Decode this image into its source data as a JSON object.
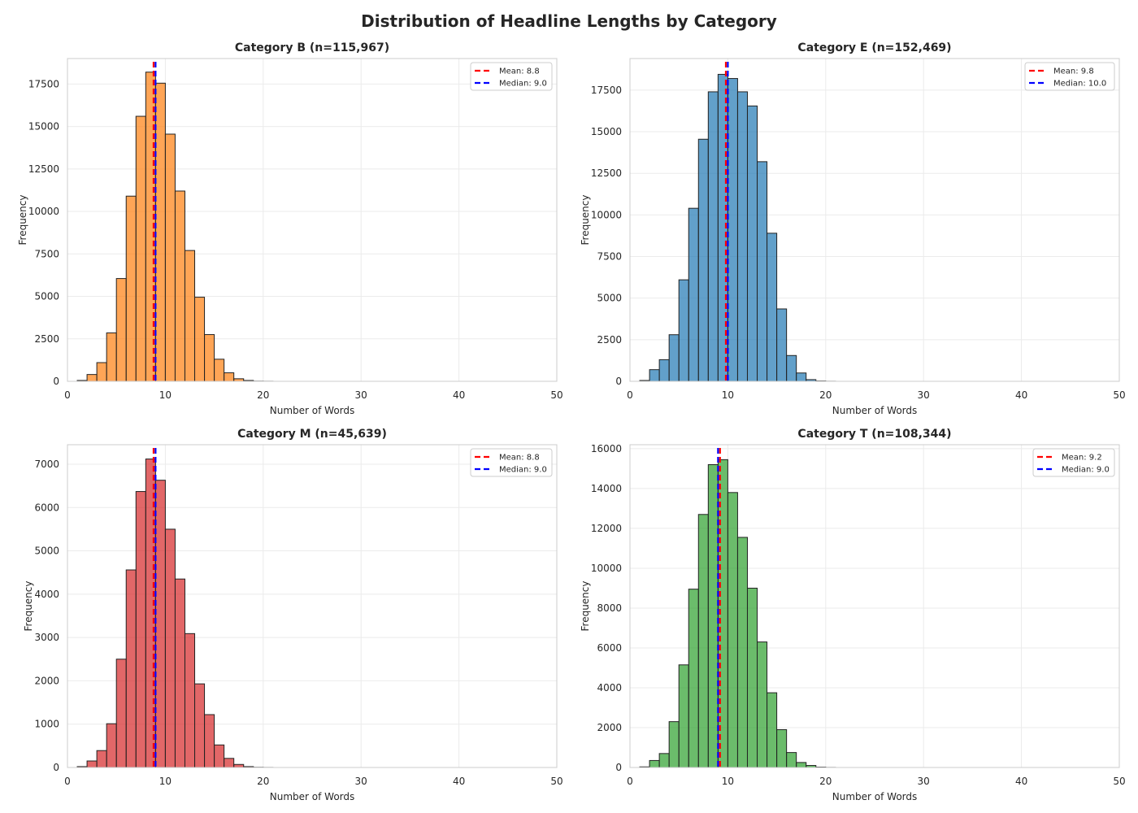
{
  "figure": {
    "title": "Distribution of Headline Lengths by Category"
  },
  "chart_data": [
    {
      "type": "bar",
      "title": "Category B (n=115,967)",
      "xlabel": "Number of Words",
      "ylabel": "Frequency",
      "color": "#ff7f0e",
      "xlim": [
        0,
        50
      ],
      "ylim": [
        0,
        19000
      ],
      "xticks": [
        0,
        10,
        20,
        30,
        40,
        50
      ],
      "yticks": [
        0,
        2500,
        5000,
        7500,
        10000,
        12500,
        15000,
        17500
      ],
      "bin_width": 1,
      "bin_starts": [
        1,
        2,
        3,
        4,
        5,
        6,
        7,
        8,
        9,
        10,
        11,
        12,
        13,
        14,
        15,
        16,
        17,
        18,
        19,
        20
      ],
      "values": [
        50,
        400,
        1100,
        2850,
        6050,
        10900,
        15600,
        18200,
        17550,
        14550,
        11200,
        7700,
        4950,
        2750,
        1300,
        500,
        150,
        50,
        10,
        5
      ],
      "legend": [
        {
          "label": "Mean: 8.8",
          "color": "#ff0000",
          "x": 8.8
        },
        {
          "label": "Median: 9.0",
          "color": "#0000ff",
          "x": 9.0
        }
      ],
      "legend_position": "upper right",
      "grid": true
    },
    {
      "type": "bar",
      "title": "Category E (n=152,469)",
      "xlabel": "Number of Words",
      "ylabel": "Frequency",
      "color": "#1f77b4",
      "xlim": [
        0,
        50
      ],
      "ylim": [
        0,
        19400
      ],
      "xticks": [
        0,
        10,
        20,
        30,
        40,
        50
      ],
      "yticks": [
        0,
        2500,
        5000,
        7500,
        10000,
        12500,
        15000,
        17500
      ],
      "bin_width": 1,
      "bin_starts": [
        1,
        2,
        3,
        4,
        5,
        6,
        7,
        8,
        9,
        10,
        11,
        12,
        13,
        14,
        15,
        16,
        17,
        18,
        19,
        20
      ],
      "values": [
        50,
        700,
        1300,
        2800,
        6100,
        10400,
        14550,
        17400,
        18450,
        18200,
        17400,
        16550,
        13200,
        8900,
        4350,
        1550,
        500,
        100,
        20,
        5
      ],
      "legend": [
        {
          "label": "Mean: 9.8",
          "color": "#ff0000",
          "x": 9.8
        },
        {
          "label": "Median: 10.0",
          "color": "#0000ff",
          "x": 10.0
        }
      ],
      "legend_position": "upper right",
      "grid": true
    },
    {
      "type": "bar",
      "title": "Category M (n=45,639)",
      "xlabel": "Number of Words",
      "ylabel": "Frequency",
      "color": "#d62728",
      "xlim": [
        0,
        50
      ],
      "ylim": [
        0,
        7450
      ],
      "xticks": [
        0,
        10,
        20,
        30,
        40,
        50
      ],
      "yticks": [
        0,
        1000,
        2000,
        3000,
        4000,
        5000,
        6000,
        7000
      ],
      "bin_width": 1,
      "bin_starts": [
        1,
        2,
        3,
        4,
        5,
        6,
        7,
        8,
        9,
        10,
        11,
        12,
        13,
        14,
        15,
        16,
        17,
        18,
        19,
        20
      ],
      "values": [
        20,
        150,
        390,
        1010,
        2500,
        4560,
        6370,
        7120,
        6630,
        5500,
        4350,
        3090,
        1930,
        1220,
        520,
        210,
        70,
        20,
        5,
        2
      ],
      "legend": [
        {
          "label": "Mean: 8.8",
          "color": "#ff0000",
          "x": 8.8
        },
        {
          "label": "Median: 9.0",
          "color": "#0000ff",
          "x": 9.0
        }
      ],
      "legend_position": "upper right",
      "grid": true
    },
    {
      "type": "bar",
      "title": "Category T (n=108,344)",
      "xlabel": "Number of Words",
      "ylabel": "Frequency",
      "color": "#2ca02c",
      "xlim": [
        0,
        50
      ],
      "ylim": [
        0,
        16200
      ],
      "xticks": [
        0,
        10,
        20,
        30,
        40,
        50
      ],
      "yticks": [
        0,
        2000,
        4000,
        6000,
        8000,
        10000,
        12000,
        14000,
        16000
      ],
      "bin_width": 1,
      "bin_starts": [
        1,
        2,
        3,
        4,
        5,
        6,
        7,
        8,
        9,
        10,
        11,
        12,
        13,
        14,
        15,
        16,
        17,
        18,
        19,
        20
      ],
      "values": [
        30,
        350,
        700,
        2300,
        5150,
        8950,
        12700,
        15200,
        15450,
        13800,
        11550,
        9000,
        6300,
        3750,
        1900,
        750,
        250,
        100,
        20,
        5
      ],
      "legend": [
        {
          "label": "Mean: 9.2",
          "color": "#ff0000",
          "x": 9.2
        },
        {
          "label": "Median: 9.0",
          "color": "#0000ff",
          "x": 9.0
        }
      ],
      "legend_position": "upper right",
      "grid": true
    }
  ]
}
